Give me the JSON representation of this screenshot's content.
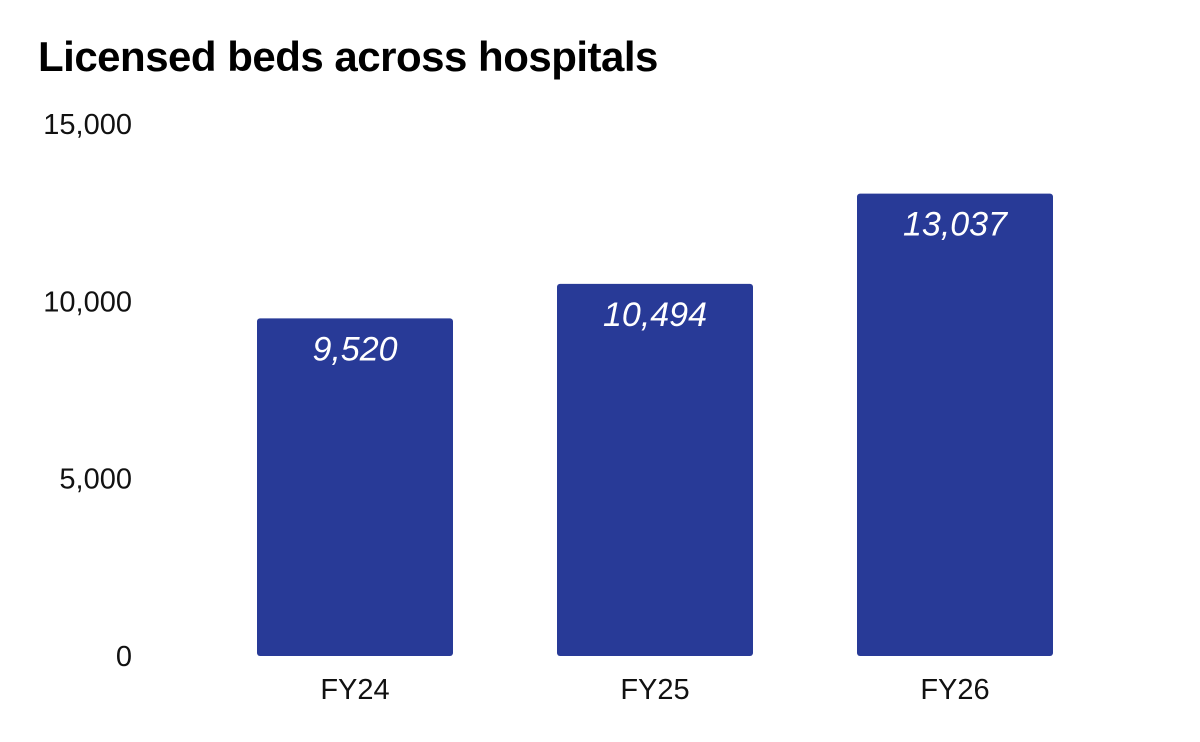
{
  "chart_data": {
    "type": "bar",
    "title": "Licensed beds across hospitals",
    "categories": [
      "FY24",
      "FY25",
      "FY26"
    ],
    "values": [
      9520,
      10494,
      13037
    ],
    "value_labels": [
      "9,520",
      "10,494",
      "13,037"
    ],
    "yticks": [
      0,
      5000,
      10000,
      15000
    ],
    "ytick_labels": [
      "0",
      "5,000",
      "10,000",
      "15,000"
    ],
    "ylim": [
      0,
      15000
    ],
    "grid": false,
    "legend": "none",
    "colors": {
      "bar": "#283a97",
      "value_label": "#ffffff",
      "text": "#111111"
    }
  }
}
